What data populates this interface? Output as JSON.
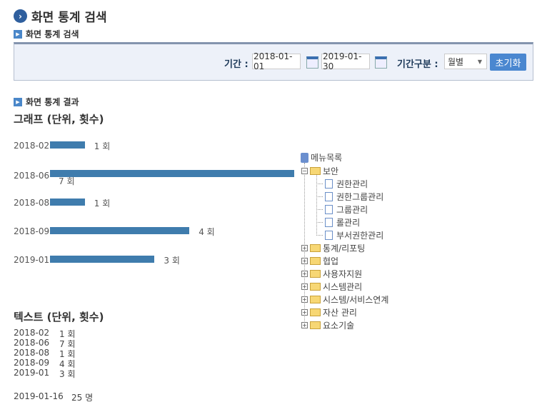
{
  "page": {
    "title": "화면 통계 검색"
  },
  "search": {
    "section": "화면 통계 검색",
    "period_label": "기간 :",
    "start": "2018-01-01",
    "end": "2019-01-30",
    "type_label": "기간구분 :",
    "type_value": "월별",
    "reset": "초기화"
  },
  "result": {
    "section": "화면 통계 결과",
    "graph_title": "그래프 (단위, 횟수)",
    "text_title": "텍스트 (단위, 횟수)"
  },
  "chart_data": {
    "type": "bar",
    "orientation": "horizontal",
    "categories": [
      "2018-02",
      "2018-06",
      "2018-08",
      "2018-09",
      "2019-01"
    ],
    "values": [
      1,
      7,
      1,
      4,
      3
    ],
    "labels": [
      "1 회",
      "7 회",
      "1 회",
      "4 회",
      "3 회"
    ],
    "color": "#3f7cad"
  },
  "text_rows": [
    {
      "d": "2018-02",
      "v": "1 회"
    },
    {
      "d": "2018-06",
      "v": "7 회"
    },
    {
      "d": "2018-08",
      "v": "1 회"
    },
    {
      "d": "2018-09",
      "v": "4 회"
    },
    {
      "d": "2019-01",
      "v": "3 회"
    }
  ],
  "footer": {
    "date": "2019-01-16",
    "count": "25 명"
  },
  "tree": {
    "root": "메뉴목록",
    "open": "보안",
    "children": [
      "권한관리",
      "권한그룹관리",
      "그룹관리",
      "롤관리",
      "부서권한관리"
    ],
    "folders": [
      "통계/리포팅",
      "협업",
      "사용자지원",
      "시스템관리",
      "시스템/서비스연계",
      "자산 관리",
      "요소기술"
    ]
  }
}
